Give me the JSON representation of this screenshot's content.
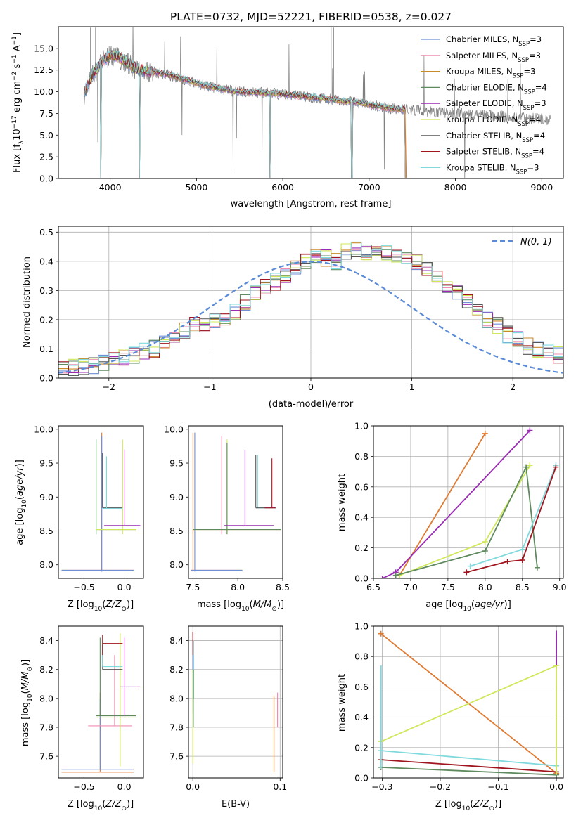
{
  "figure": {
    "title": "PLATE=0732, MJD=52221, FIBERID=0538, z=0.027"
  },
  "colors": {
    "Chabrier MILES": "#6f8fd6",
    "Salpeter MILES": "#ef8eb0",
    "Kroupa MILES": "#c98a2a",
    "Chabrier ELODIE": "#5e8a5e",
    "Salpeter ELODIE": "#9a2bb3",
    "Kroupa ELODIE": "#cfe85a",
    "Chabrier STELIB": "#555555",
    "Salpeter STELIB": "#a0151e",
    "Kroupa STELIB": "#7fd9dd",
    "Data": "#808080",
    "Orange": "#e07a30",
    "Normal": "#5b8bd6"
  },
  "chart_data": [
    {
      "id": "spectrum",
      "type": "line",
      "xlabel": "wavelength [Angstrom, rest frame]",
      "ylabel": "Flux [f_λ 10^-17 erg cm^-2 s^-1 A^-1]",
      "xlim": [
        3400,
        9250
      ],
      "ylim": [
        0,
        17.5
      ],
      "xticks": [
        4000,
        5000,
        6000,
        7000,
        8000,
        9000
      ],
      "yticks": [
        0.0,
        2.5,
        5.0,
        7.5,
        10.0,
        12.5,
        15.0
      ],
      "legend_position": "top-right",
      "legend": [
        {
          "name": "Chabrier MILES",
          "label_base": "Chabrier MILES, N",
          "label_sub": "SSP",
          "label_tail": "=3"
        },
        {
          "name": "Salpeter MILES",
          "label_base": "Salpeter MILES, N",
          "label_sub": "SSP",
          "label_tail": "=3"
        },
        {
          "name": "Kroupa MILES",
          "label_base": "Kroupa MILES, N",
          "label_sub": "SSP",
          "label_tail": "=3"
        },
        {
          "name": "Chabrier ELODIE",
          "label_base": "Chabrier ELODIE, N",
          "label_sub": "SSP",
          "label_tail": "=4"
        },
        {
          "name": "Salpeter ELODIE",
          "label_base": "Salpeter ELODIE, N",
          "label_sub": "SSP",
          "label_tail": "=3"
        },
        {
          "name": "Kroupa ELODIE",
          "label_base": "Kroupa ELODIE, N",
          "label_sub": "SSP",
          "label_tail": "=4"
        },
        {
          "name": "Chabrier STELIB",
          "label_base": "Chabrier STELIB, N",
          "label_sub": "SSP",
          "label_tail": "=4"
        },
        {
          "name": "Salpeter STELIB",
          "label_base": "Salpeter STELIB, N",
          "label_sub": "SSP",
          "label_tail": "=4"
        },
        {
          "name": "Kroupa STELIB",
          "label_base": "Kroupa STELIB, N",
          "label_sub": "SSP",
          "label_tail": "=3"
        }
      ],
      "data_envelope": {
        "x": [
          3700,
          3800,
          3900,
          4000,
          4100,
          4200,
          4300,
          4500,
          4700,
          4900,
          5100,
          5300,
          5500,
          5700,
          5900,
          6100,
          6300,
          6500,
          6700,
          6900,
          7100,
          7300,
          7500,
          7700,
          7900,
          8100,
          8300,
          8500,
          8700,
          8900,
          9100
        ],
        "y": [
          9.8,
          12.0,
          13.4,
          14.2,
          14.0,
          13.3,
          12.6,
          12.3,
          11.9,
          11.3,
          10.7,
          10.3,
          10.0,
          9.9,
          9.8,
          9.6,
          9.4,
          9.2,
          8.9,
          8.7,
          8.3,
          8.0,
          7.9,
          7.7,
          7.6,
          7.5,
          7.3,
          7.2,
          7.0,
          6.9,
          6.8
        ]
      },
      "model_range": [
        3700,
        7420
      ],
      "model_dropouts": [
        3890,
        4340,
        5850,
        6800,
        7420
      ]
    },
    {
      "id": "residuals",
      "type": "histogram",
      "xlabel": "(data-model)/error",
      "ylabel": "Normed distribution",
      "xlim": [
        -2.5,
        2.5
      ],
      "ylim": [
        0,
        0.52
      ],
      "xticks": [
        -2,
        -1,
        0,
        1,
        2
      ],
      "yticks": [
        0.0,
        0.1,
        0.2,
        0.3,
        0.4,
        0.5
      ],
      "legend_position": "top-right",
      "normal_label": "N(0, 1)",
      "bin_width": 0.1,
      "base_profile": [
        0.03,
        0.035,
        0.04,
        0.045,
        0.05,
        0.06,
        0.07,
        0.08,
        0.09,
        0.1,
        0.12,
        0.14,
        0.16,
        0.18,
        0.19,
        0.2,
        0.21,
        0.23,
        0.26,
        0.29,
        0.31,
        0.33,
        0.35,
        0.38,
        0.4,
        0.42,
        0.41,
        0.4,
        0.43,
        0.44,
        0.43,
        0.44,
        0.43,
        0.42,
        0.41,
        0.4,
        0.37,
        0.34,
        0.31,
        0.29,
        0.26,
        0.23,
        0.2,
        0.18,
        0.15,
        0.13,
        0.11,
        0.1,
        0.09,
        0.08
      ]
    },
    {
      "id": "z-age",
      "type": "scatter",
      "xlabel": "Z [log10(Z/Z_sun)]",
      "ylabel": "age [log10(age/yr)]",
      "xlim": [
        -0.82,
        0.24
      ],
      "ylim": [
        7.8,
        10.05
      ],
      "xticks": [
        -0.5,
        0.0
      ],
      "yticks": [
        8.0,
        8.5,
        9.0,
        9.5,
        10.0
      ]
    },
    {
      "id": "mass-age",
      "type": "scatter",
      "xlabel": "mass [log10(M/M_sun)]",
      "ylabel": "",
      "xlim": [
        7.45,
        8.5
      ],
      "ylim": [
        7.8,
        10.05
      ],
      "xticks": [
        7.5,
        8.0,
        8.5
      ],
      "yticks": [
        8.0,
        8.5,
        9.0,
        9.5,
        10.0
      ]
    },
    {
      "id": "age-weight",
      "type": "line",
      "xlabel": "age [log10(age/yr)]",
      "ylabel": "mass weight",
      "xlim": [
        6.5,
        9.05
      ],
      "ylim": [
        0,
        1.0
      ],
      "xticks": [
        6.5,
        7.0,
        7.5,
        8.0,
        8.5,
        9.0
      ],
      "yticks": [
        0.0,
        0.2,
        0.4,
        0.6,
        0.8,
        1.0
      ],
      "grid": true,
      "series": [
        {
          "color": "Orange",
          "x": [
            6.85,
            8.0
          ],
          "y": [
            0.02,
            0.95
          ]
        },
        {
          "color": "Salpeter ELODIE",
          "x": [
            6.62,
            6.8,
            8.6
          ],
          "y": [
            0.0,
            0.04,
            0.97
          ]
        },
        {
          "color": "Kroupa ELODIE",
          "x": [
            6.85,
            8.0,
            8.6
          ],
          "y": [
            0.02,
            0.24,
            0.74
          ]
        },
        {
          "color": "Chabrier ELODIE",
          "x": [
            6.8,
            8.0,
            8.55,
            8.7
          ],
          "y": [
            0.02,
            0.18,
            0.73,
            0.07
          ]
        },
        {
          "color": "Kroupa STELIB",
          "x": [
            7.8,
            8.5,
            8.95
          ],
          "y": [
            0.08,
            0.19,
            0.74
          ]
        },
        {
          "color": "Salpeter STELIB",
          "x": [
            7.75,
            8.3,
            8.5,
            8.95
          ],
          "y": [
            0.04,
            0.11,
            0.12,
            0.73
          ]
        }
      ]
    },
    {
      "id": "z-mass",
      "type": "scatter",
      "xlabel": "Z [log10(Z/Z_sun)]",
      "ylabel": "mass [log10(M/M_sun)]",
      "xlim": [
        -0.82,
        0.24
      ],
      "ylim": [
        7.45,
        8.5
      ],
      "xticks": [
        -0.5,
        0.0
      ],
      "yticks": [
        7.6,
        7.8,
        8.0,
        8.2,
        8.4
      ]
    },
    {
      "id": "ebv-mass",
      "type": "scatter",
      "xlabel": "E(B-V)",
      "ylabel": "",
      "xlim": [
        -0.005,
        0.103
      ],
      "ylim": [
        7.45,
        8.5
      ],
      "xticks": [
        0.0,
        0.1
      ],
      "yticks": [
        7.6,
        7.8,
        8.0,
        8.2,
        8.4
      ],
      "grid": true
    },
    {
      "id": "z-weight",
      "type": "line",
      "xlabel": "Z [log10(Z/Z_sun)]",
      "ylabel": "mass weight",
      "xlim": [
        -0.315,
        0.012
      ],
      "ylim": [
        0,
        1.0
      ],
      "xticks": [
        -0.3,
        -0.2,
        -0.1,
        0.0
      ],
      "yticks": [
        0.0,
        0.2,
        0.4,
        0.6,
        0.8,
        1.0
      ],
      "grid": true,
      "series": [
        {
          "color": "Orange",
          "x": [
            -0.302,
            0.0
          ],
          "y": [
            0.95,
            0.03
          ]
        },
        {
          "color": "Kroupa ELODIE",
          "x": [
            -0.302,
            0.0
          ],
          "y": [
            0.24,
            0.74
          ]
        },
        {
          "color": "Kroupa STELIB",
          "x": [
            -0.302,
            0.0
          ],
          "y": [
            0.18,
            0.08
          ]
        },
        {
          "color": "Salpeter STELIB",
          "x": [
            -0.302,
            0.0
          ],
          "y": [
            0.12,
            0.04
          ]
        },
        {
          "color": "Chabrier ELODIE",
          "x": [
            -0.302,
            0.0
          ],
          "y": [
            0.07,
            0.02
          ]
        }
      ]
    }
  ]
}
